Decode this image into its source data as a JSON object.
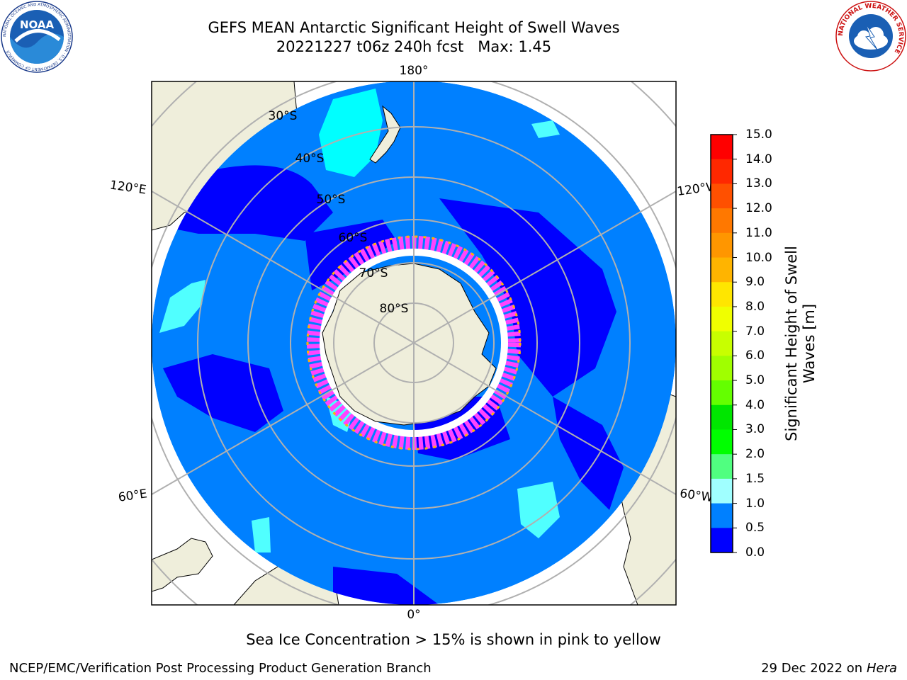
{
  "title": {
    "line1": "GEFS MEAN Antarctic Significant Height of Swell Waves",
    "line2": "20221227 t06z 240h fcst   Max: 1.45"
  },
  "map": {
    "projection": "south-polar-stereographic",
    "longitude_labels": [
      "180°",
      "120°E",
      "120°W",
      "60°E",
      "60°W",
      "0°"
    ],
    "latitude_labels": [
      "30°S",
      "40°S",
      "50°S",
      "60°S",
      "70°S",
      "80°S"
    ],
    "colors": {
      "land": "#efeedb",
      "ocean_low": "#0000ff",
      "ocean_mid": "#0080ff",
      "ocean_high": "#00ffff",
      "sea_ice_edge": "#ff44ff",
      "grid": "#b0b0b0"
    }
  },
  "colorbar": {
    "title_line1": "Significant Height of Swell",
    "title_line2": "Waves [m]",
    "tick_labels": [
      "15.0",
      "14.0",
      "13.0",
      "12.0",
      "11.0",
      "10.0",
      "9.0",
      "8.0",
      "7.0",
      "6.0",
      "5.0",
      "4.0",
      "3.0",
      "2.0",
      "1.5",
      "1.0",
      "0.5",
      "0.0"
    ],
    "colors_top_to_bottom": [
      "#ff0000",
      "#ff2800",
      "#ff5000",
      "#ff7800",
      "#ff9600",
      "#ffb400",
      "#ffe600",
      "#f0ff00",
      "#c8ff00",
      "#a0ff00",
      "#64ff00",
      "#00e600",
      "#00ff00",
      "#50ff80",
      "#a0ffff",
      "#50ffff",
      "#00ffff",
      "#0080ff",
      "#0000ff"
    ]
  },
  "note": "Sea Ice Concentration > 15% is shown in pink to yellow",
  "footer": {
    "left": "NCEP/EMC/Verification Post Processing Product Generation Branch",
    "date": "29 Dec 2022 on",
    "machine": "Hera"
  },
  "logos": {
    "noaa_text": "NOAA",
    "noaa_ring_text": "NATIONAL OCEANIC AND ATMOSPHERIC ADMINISTRATION · U.S. DEPARTMENT OF COMMERCE",
    "nws_ring_text": "NATIONAL WEATHER SERVICE"
  }
}
